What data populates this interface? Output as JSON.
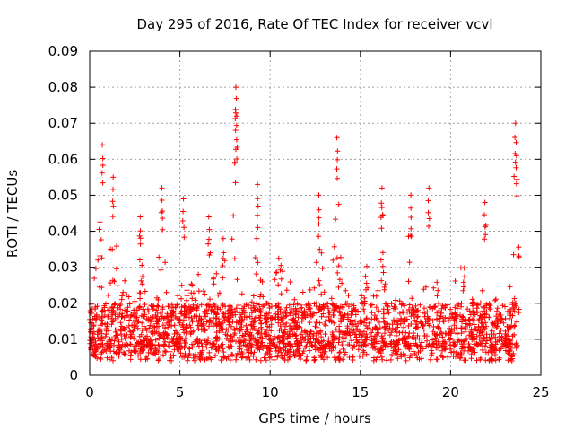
{
  "chart_data": {
    "type": "scatter",
    "title": "Day 295 of 2016, Rate Of TEC Index for receiver vcvl",
    "xlabel": "GPS time / hours",
    "ylabel": "ROTI / TECUs",
    "xlim": [
      0,
      25
    ],
    "ylim": [
      0,
      0.09
    ],
    "x_ticks": [
      0,
      5,
      10,
      15,
      20,
      25
    ],
    "x_tick_labels": [
      "0",
      "5",
      "10",
      "15",
      "20",
      "25"
    ],
    "y_ticks": [
      0,
      0.01,
      0.02,
      0.03,
      0.04,
      0.05,
      0.06,
      0.07,
      0.08,
      0.09
    ],
    "y_tick_labels": [
      "0",
      "0.01",
      "0.02",
      "0.03",
      "0.04",
      "0.05",
      "0.06",
      "0.07",
      "0.08",
      "0.09"
    ],
    "grid": true,
    "marker": "+",
    "color": "#ff0000",
    "series": [
      {
        "name": "ROTI",
        "x_range": [
          0,
          23.8
        ],
        "baseline_range": [
          0.005,
          0.02
        ],
        "notable_peaks": [
          {
            "x": 0.7,
            "y": 0.064
          },
          {
            "x": 8.1,
            "y": 0.08
          },
          {
            "x": 8.15,
            "y": 0.072
          },
          {
            "x": 13.7,
            "y": 0.066
          },
          {
            "x": 23.6,
            "y": 0.07
          },
          {
            "x": 23.65,
            "y": 0.061
          },
          {
            "x": 1.3,
            "y": 0.055
          },
          {
            "x": 4.0,
            "y": 0.052
          },
          {
            "x": 5.2,
            "y": 0.049
          },
          {
            "x": 9.3,
            "y": 0.053
          },
          {
            "x": 12.7,
            "y": 0.05
          },
          {
            "x": 16.2,
            "y": 0.052
          },
          {
            "x": 17.8,
            "y": 0.05
          },
          {
            "x": 18.8,
            "y": 0.052
          },
          {
            "x": 21.9,
            "y": 0.048
          },
          {
            "x": 2.8,
            "y": 0.044
          },
          {
            "x": 6.6,
            "y": 0.044
          },
          {
            "x": 7.4,
            "y": 0.038
          }
        ]
      }
    ]
  }
}
